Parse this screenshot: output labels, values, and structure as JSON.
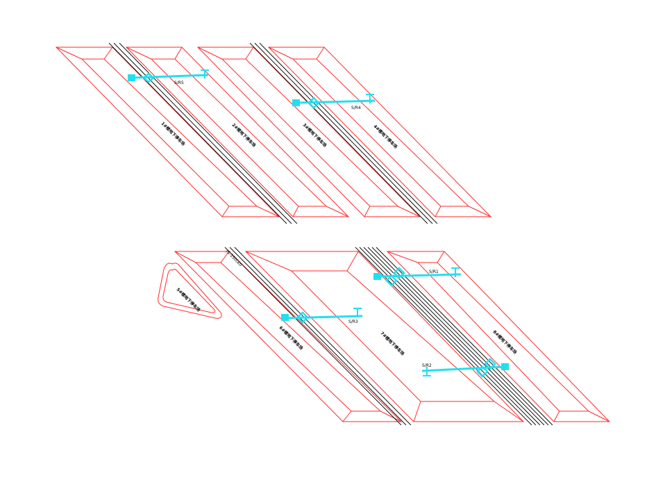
{
  "colors": {
    "plot_outline": "#ff2a2a",
    "road": "#111111",
    "pipe": "#22dff0",
    "background": "#ffffff"
  },
  "pipe_labels": {
    "r5": "S/R5",
    "r4": "S/R4",
    "r3": "S/R3",
    "r2": "S/R2",
    "r1": "S/R1"
  },
  "road_label": "(S-350(a))",
  "plot_labels": {
    "top_1": "1#楼地下停车场",
    "top_2": "2#楼地下停车场",
    "top_3": "3#楼地下停车场",
    "top_4": "4#楼地下停车场",
    "bottom_triangle": "5#楼地下停车场",
    "bottom_1": "6#楼地下停车场",
    "bottom_2": "7#楼地下停车场",
    "bottom_3": "8#楼地下停车场"
  }
}
